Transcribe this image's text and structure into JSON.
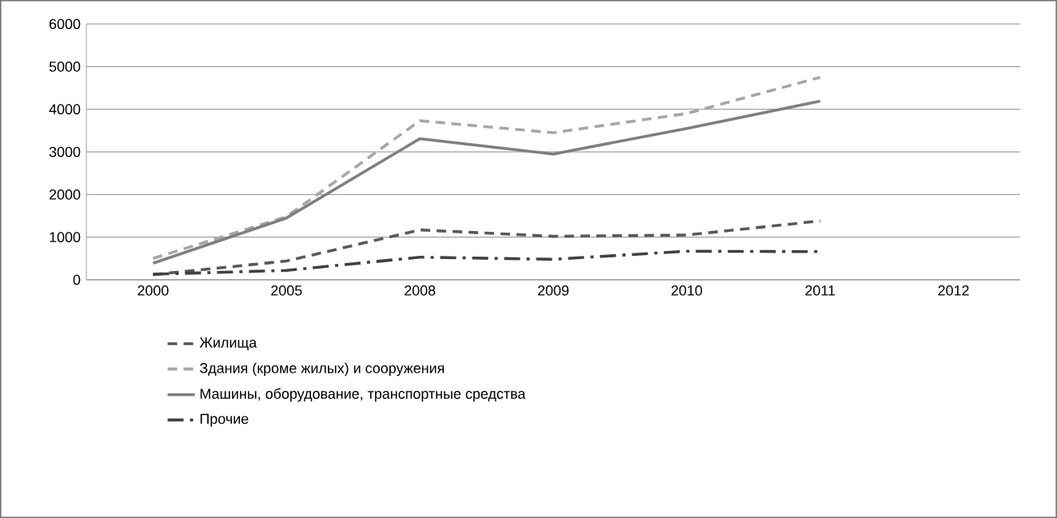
{
  "chart_data": {
    "type": "line",
    "categories": [
      "2000",
      "2005",
      "2008",
      "2009",
      "2010",
      "2011",
      "2012"
    ],
    "ylim": [
      0,
      6000
    ],
    "yticks": [
      0,
      1000,
      2000,
      3000,
      4000,
      5000,
      6000
    ],
    "grid": "y",
    "legend": "bottom",
    "series": [
      {
        "name": "Жилища",
        "color": "#595959",
        "line_style": "dashed",
        "values": [
          120,
          440,
          1170,
          1020,
          1050,
          1380,
          null
        ]
      },
      {
        "name": "Здания (кроме жилых) и сооружения",
        "color": "#a6a6a6",
        "line_style": "dashed",
        "values": [
          500,
          1480,
          3730,
          3450,
          3900,
          4750,
          null
        ]
      },
      {
        "name": "Машины, оборудование, транспортные средства",
        "color": "#7f7f7f",
        "line_style": "solid",
        "values": [
          390,
          1450,
          3310,
          2950,
          3550,
          4190,
          null
        ]
      },
      {
        "name": "Прочие",
        "color": "#404040",
        "line_style": "dashdot",
        "values": [
          130,
          220,
          530,
          480,
          670,
          660,
          null
        ]
      }
    ]
  }
}
